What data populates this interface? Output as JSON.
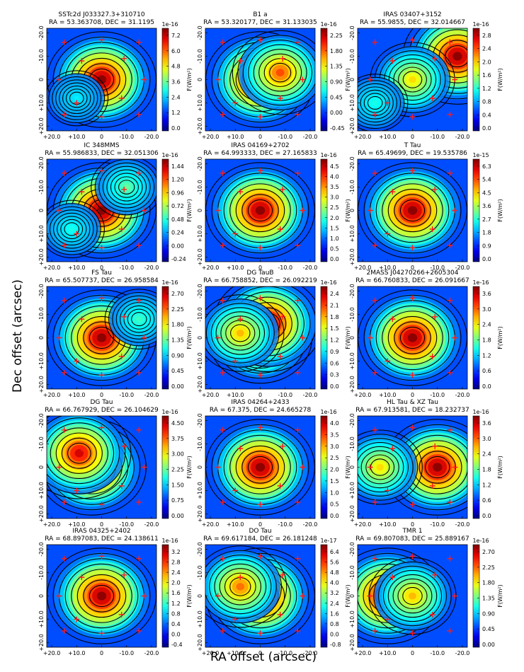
{
  "figure": {
    "xlabel": "RA offset (arcsec)",
    "ylabel": "Dec offset (arcsec)",
    "colorbar_label": "F(W/m²)",
    "x_ticks": [
      "+20.0",
      "+10.0",
      "0",
      "-10.0",
      "-20.0"
    ],
    "y_ticks": [
      "-20.0",
      "-10.0",
      "0",
      "+10.0",
      "+20.0"
    ]
  },
  "chart_data": [
    {
      "type": "heatmap",
      "title": "SSTc2d J033327.3+310710",
      "subtitle": "RA = 53.363708, DEC = 31.1195",
      "xlim": [
        22,
        -22
      ],
      "ylim": [
        22,
        -22
      ],
      "scale": "1e-16",
      "cbar_ticks": [
        "7.2",
        "6.0",
        "4.8",
        "3.6",
        "2.4",
        "1.2",
        "0.0"
      ],
      "peaks": [
        {
          "x": 0,
          "y": 0,
          "amp": 1.0
        },
        {
          "x": 10,
          "y": 8,
          "amp": 0.15
        }
      ]
    },
    {
      "type": "heatmap",
      "title": "B1 a",
      "subtitle": "RA = 53.320177, DEC = 31.133035",
      "xlim": [
        22,
        -22
      ],
      "ylim": [
        22,
        -22
      ],
      "scale": "1e-16",
      "cbar_ticks": [
        "2.25",
        "1.80",
        "1.35",
        "0.90",
        "0.45",
        "0.00",
        "-0.45"
      ],
      "peaks": [
        {
          "x": 0,
          "y": 0,
          "amp": 1.0
        },
        {
          "x": -8,
          "y": -3,
          "amp": 0.75
        }
      ]
    },
    {
      "type": "heatmap",
      "title": "IRAS 03407+3152",
      "subtitle": "RA = 55.9855, DEC = 32.014667",
      "xlim": [
        22,
        -22
      ],
      "ylim": [
        22,
        -22
      ],
      "scale": "1e-16",
      "cbar_ticks": [
        "2.8",
        "2.4",
        "2.0",
        "1.6",
        "1.2",
        "0.8",
        "0.4",
        "0.0"
      ],
      "peaks": [
        {
          "x": -18,
          "y": -10,
          "amp": 1.0
        },
        {
          "x": 0,
          "y": 0,
          "amp": 0.55
        },
        {
          "x": 15,
          "y": 10,
          "amp": 0.2
        }
      ]
    },
    {
      "type": "heatmap",
      "title": "IC 348MMS",
      "subtitle": "RA = 55.986833, DEC = 32.051306",
      "xlim": [
        22,
        -22
      ],
      "ylim": [
        22,
        -22
      ],
      "scale": "1e-16",
      "cbar_ticks": [
        "1.44",
        "1.20",
        "0.96",
        "0.72",
        "0.48",
        "0.24",
        "0.00",
        "-0.24"
      ],
      "peaks": [
        {
          "x": 0,
          "y": 0,
          "amp": 1.0
        },
        {
          "x": -10,
          "y": -10,
          "amp": 0.3
        },
        {
          "x": 12,
          "y": 8,
          "amp": 0.2
        }
      ]
    },
    {
      "type": "heatmap",
      "title": "IRAS 04169+2702",
      "subtitle": "RA = 64.993333, DEC = 27.165833",
      "xlim": [
        22,
        -22
      ],
      "ylim": [
        22,
        -22
      ],
      "scale": "1e-16",
      "cbar_ticks": [
        "4.5",
        "4.0",
        "3.5",
        "3.0",
        "2.5",
        "2.0",
        "1.5",
        "1.0",
        "0.5",
        "0.0"
      ],
      "peaks": [
        {
          "x": 0,
          "y": 0,
          "amp": 1.0
        }
      ]
    },
    {
      "type": "heatmap",
      "title": "T Tau",
      "subtitle": "RA = 65.49699, DEC = 19.535786",
      "xlim": [
        22,
        -22
      ],
      "ylim": [
        22,
        -22
      ],
      "scale": "1e-15",
      "cbar_ticks": [
        "6.3",
        "5.4",
        "4.5",
        "3.6",
        "2.7",
        "1.8",
        "0.9",
        "0.0"
      ],
      "peaks": [
        {
          "x": 0,
          "y": 0,
          "amp": 1.0
        }
      ]
    },
    {
      "type": "heatmap",
      "title": "FS Tau",
      "subtitle": "RA = 65.507737, DEC = 26.958584",
      "xlim": [
        22,
        -22
      ],
      "ylim": [
        22,
        -22
      ],
      "scale": "1e-16",
      "cbar_ticks": [
        "2.70",
        "2.25",
        "1.80",
        "1.35",
        "0.90",
        "0.45",
        "0.00"
      ],
      "peaks": [
        {
          "x": 0,
          "y": 0,
          "amp": 1.0
        },
        {
          "x": -15,
          "y": -8,
          "amp": 0.25
        }
      ]
    },
    {
      "type": "heatmap",
      "title": "DG TauB",
      "subtitle": "RA = 66.758852, DEC = 26.092219",
      "xlim": [
        22,
        -22
      ],
      "ylim": [
        22,
        -22
      ],
      "scale": "1e-16",
      "cbar_ticks": [
        "2.4",
        "2.1",
        "1.8",
        "1.5",
        "1.2",
        "0.9",
        "0.6",
        "0.3",
        "0.0"
      ],
      "peaks": [
        {
          "x": 0,
          "y": 0,
          "amp": 0.9
        },
        {
          "x": -3,
          "y": -6,
          "amp": 1.0
        },
        {
          "x": 8,
          "y": -2,
          "amp": 0.6
        }
      ]
    },
    {
      "type": "heatmap",
      "title": "2MASS J04270266+2605304",
      "subtitle": "RA = 66.760833, DEC = 26.091667",
      "xlim": [
        22,
        -22
      ],
      "ylim": [
        22,
        -22
      ],
      "scale": "1e-16",
      "cbar_ticks": [
        "3.6",
        "3.0",
        "2.4",
        "1.8",
        "1.2",
        "0.6",
        "0.0"
      ],
      "peaks": [
        {
          "x": 0,
          "y": 0,
          "amp": 1.0
        }
      ]
    },
    {
      "type": "heatmap",
      "title": "DG Tau",
      "subtitle": "RA = 66.767929, DEC = 26.104629",
      "xlim": [
        22,
        -22
      ],
      "ylim": [
        22,
        -22
      ],
      "scale": "1e-16",
      "cbar_ticks": [
        "4.50",
        "3.75",
        "3.00",
        "2.25",
        "1.50",
        "0.75",
        "0.00"
      ],
      "peaks": [
        {
          "x": 4,
          "y": 0,
          "amp": 1.0
        },
        {
          "x": 9,
          "y": -6,
          "amp": 0.9
        }
      ]
    },
    {
      "type": "heatmap",
      "title": "IRAS 04264+2433",
      "subtitle": "RA = 67.375, DEC = 24.665278",
      "xlim": [
        22,
        -22
      ],
      "ylim": [
        22,
        -22
      ],
      "scale": "1e-16",
      "cbar_ticks": [
        "4.0",
        "3.5",
        "3.0",
        "2.5",
        "2.0",
        "1.5",
        "1.0",
        "0.5",
        "0.0"
      ],
      "peaks": [
        {
          "x": 0,
          "y": 0,
          "amp": 1.0
        }
      ]
    },
    {
      "type": "heatmap",
      "title": "HL Tau & XZ Tau",
      "subtitle": "RA = 67.913581, DEC = 18.232737",
      "xlim": [
        22,
        -22
      ],
      "ylim": [
        22,
        -22
      ],
      "scale": "1e-16",
      "cbar_ticks": [
        "3.6",
        "3.0",
        "2.4",
        "1.8",
        "1.2",
        "0.6",
        "0.0"
      ],
      "peaks": [
        {
          "x": -10,
          "y": 0,
          "amp": 1.0
        },
        {
          "x": 13,
          "y": 0,
          "amp": 0.55
        }
      ]
    },
    {
      "type": "heatmap",
      "title": "IRAS 04325+2402",
      "subtitle": "RA = 68.897083, DEC = 24.138611",
      "xlim": [
        22,
        -22
      ],
      "ylim": [
        22,
        -22
      ],
      "scale": "1e-16",
      "cbar_ticks": [
        "3.2",
        "2.8",
        "2.4",
        "2.0",
        "1.6",
        "1.2",
        "0.8",
        "0.4",
        "0.0",
        "-0.4"
      ],
      "peaks": [
        {
          "x": 0,
          "y": 0,
          "amp": 1.0
        }
      ]
    },
    {
      "type": "heatmap",
      "title": "DO Tau",
      "subtitle": "RA = 69.617184, DEC = 26.181248",
      "xlim": [
        22,
        -22
      ],
      "ylim": [
        22,
        -22
      ],
      "scale": "1e-17",
      "cbar_ticks": [
        "6.4",
        "5.6",
        "4.8",
        "4.0",
        "3.2",
        "2.4",
        "1.6",
        "0.8",
        "0.0",
        "-0.8"
      ],
      "peaks": [
        {
          "x": 0,
          "y": 0,
          "amp": 1.0
        },
        {
          "x": 8,
          "y": -4,
          "amp": 0.7
        }
      ]
    },
    {
      "type": "heatmap",
      "title": "TMR 1",
      "subtitle": "RA = 69.807083, DEC = 25.889167",
      "xlim": [
        22,
        -22
      ],
      "ylim": [
        22,
        -22
      ],
      "scale": "1e-16",
      "cbar_ticks": [
        "2.70",
        "2.25",
        "1.80",
        "1.35",
        "0.90",
        "0.45",
        "0.00"
      ],
      "peaks": [
        {
          "x": 10,
          "y": 0,
          "amp": 1.0
        },
        {
          "x": 0,
          "y": 0,
          "amp": 0.6
        }
      ]
    }
  ]
}
